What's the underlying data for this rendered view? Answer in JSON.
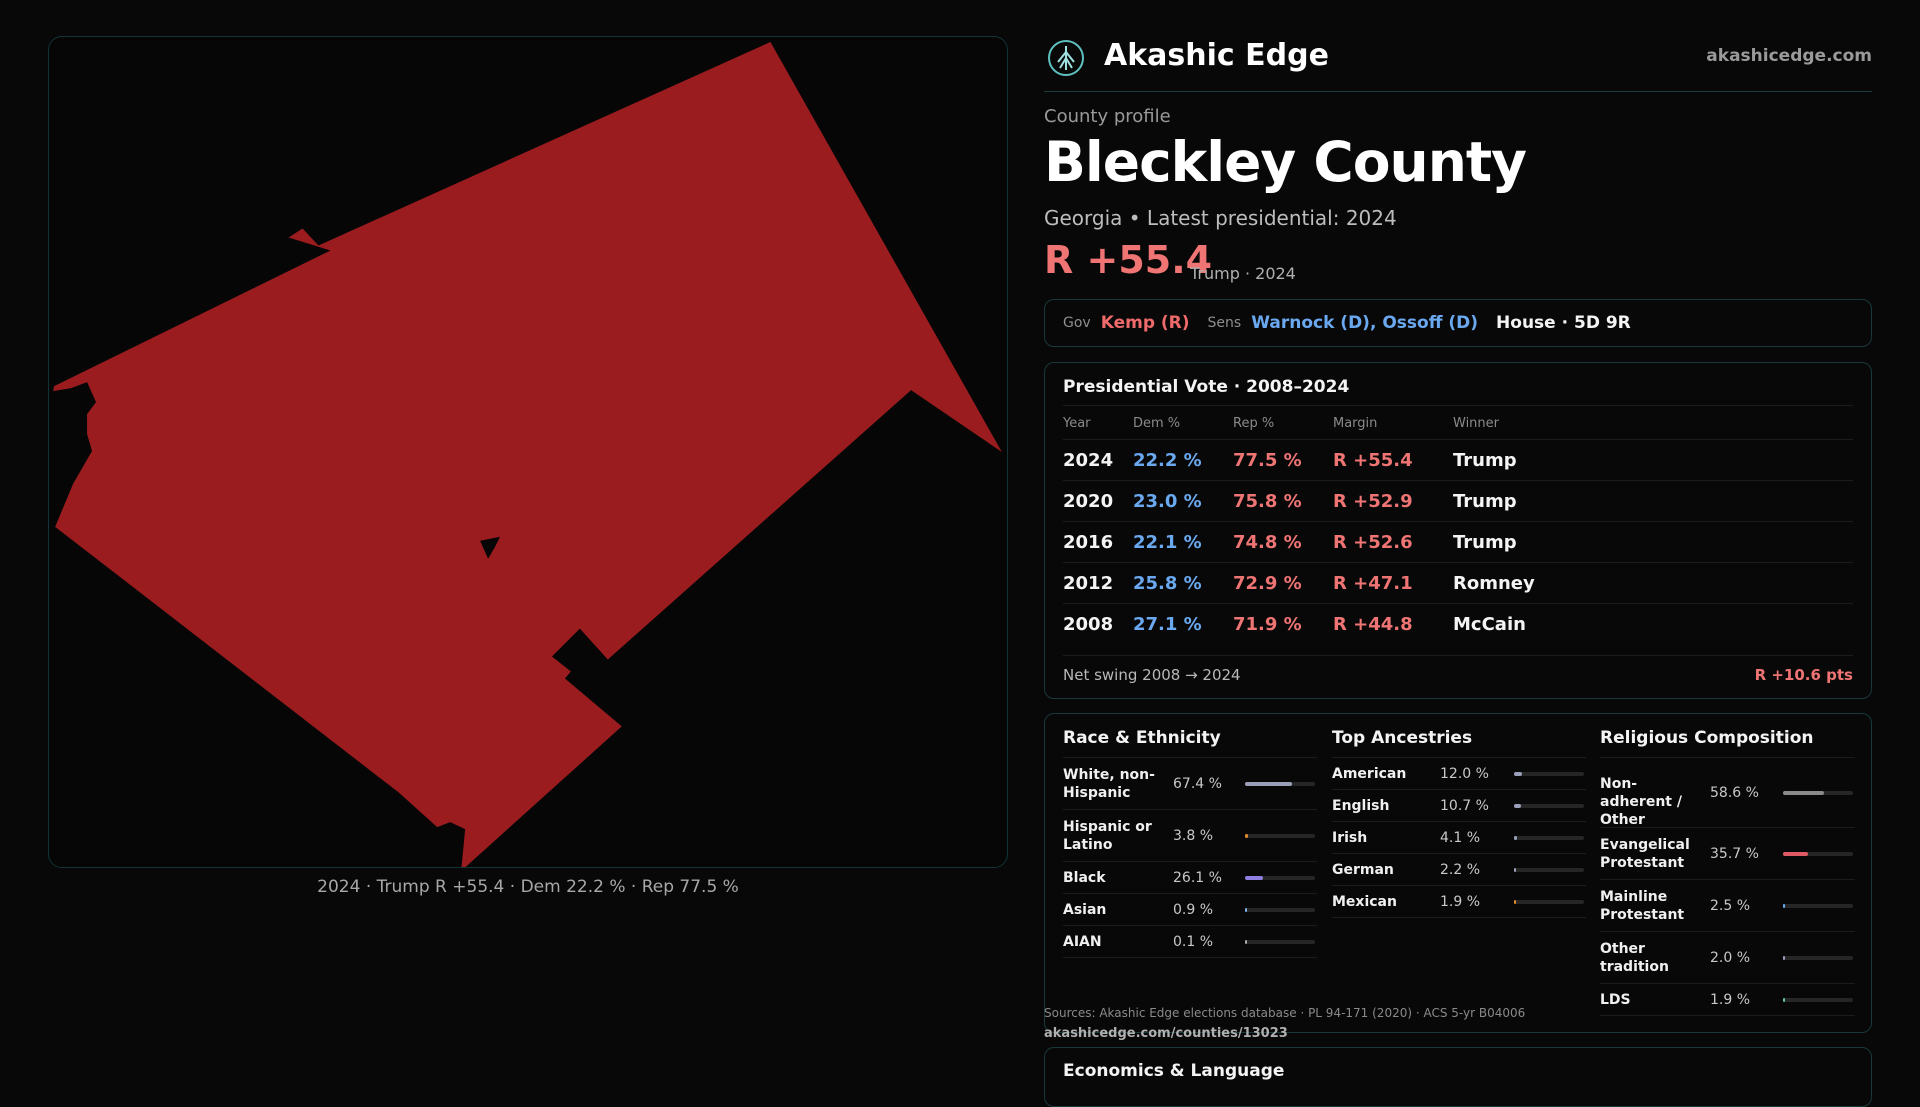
{
  "map": {
    "fill_color": "#9b1c1f",
    "caption": "2024 · Trump R +55.4 · Dem 22.2 % · Rep 77.5 %"
  },
  "header": {
    "brand": "Akashic Edge",
    "site": "akashicedge.com",
    "logo_icon": "tree-icon"
  },
  "profile": {
    "eyebrow": "County profile",
    "title": "Bleckley County",
    "subtitle": "Georgia • Latest presidential: 2024",
    "margin": "R +55.4",
    "margin_note": "Trump · 2024"
  },
  "officials": {
    "gov_label": "Gov",
    "gov_value": "Kemp (R)",
    "sens_label": "Sens",
    "sens_value": "Warnock (D), Ossoff (D)",
    "house_value": "House · 5D 9R"
  },
  "presidential": {
    "title": "Presidential Vote · 2008–2024",
    "columns": [
      "Year",
      "Dem %",
      "Rep %",
      "Margin",
      "Winner"
    ],
    "rows": [
      {
        "year": "2024",
        "dem": "22.2 %",
        "rep": "77.5 %",
        "margin": "R +55.4",
        "winner": "Trump"
      },
      {
        "year": "2020",
        "dem": "23.0 %",
        "rep": "75.8 %",
        "margin": "R +52.9",
        "winner": "Trump"
      },
      {
        "year": "2016",
        "dem": "22.1 %",
        "rep": "74.8 %",
        "margin": "R +52.6",
        "winner": "Trump"
      },
      {
        "year": "2012",
        "dem": "25.8 %",
        "rep": "72.9 %",
        "margin": "R +47.1",
        "winner": "Romney"
      },
      {
        "year": "2008",
        "dem": "27.1 %",
        "rep": "71.9 %",
        "margin": "R +44.8",
        "winner": "McCain"
      }
    ],
    "swing_label": "Net swing 2008 → 2024",
    "swing_value": "R +10.6 pts"
  },
  "race": {
    "title": "Race & Ethnicity",
    "items": [
      {
        "label": "White, non-Hispanic",
        "value": "67.4 %",
        "fraction": 0.674,
        "color": "#9aa0b8"
      },
      {
        "label": "Hispanic or Latino",
        "value": "3.8 %",
        "fraction": 0.038,
        "color": "#e08a2c"
      },
      {
        "label": "Black",
        "value": "26.1 %",
        "fraction": 0.261,
        "color": "#8f7fe0"
      },
      {
        "label": "Asian",
        "value": "0.9 %",
        "fraction": 0.009,
        "color": "#7fb0e0"
      },
      {
        "label": "AIAN",
        "value": "0.1 %",
        "fraction": 0.001,
        "color": "#aaaaaa"
      }
    ]
  },
  "ancestry": {
    "title": "Top Ancestries",
    "items": [
      {
        "label": "American",
        "value": "12.0 %",
        "fraction": 0.12,
        "color": "#9aa0b8"
      },
      {
        "label": "English",
        "value": "10.7 %",
        "fraction": 0.107,
        "color": "#9aa0b8"
      },
      {
        "label": "Irish",
        "value": "4.1 %",
        "fraction": 0.041,
        "color": "#9aa0b8"
      },
      {
        "label": "German",
        "value": "2.2 %",
        "fraction": 0.022,
        "color": "#9aa0b8"
      },
      {
        "label": "Mexican",
        "value": "1.9 %",
        "fraction": 0.019,
        "color": "#e08a2c"
      }
    ]
  },
  "religion": {
    "title": "Religious Composition",
    "items": [
      {
        "label": "Non-adherent / Other",
        "value": "58.6 %",
        "fraction": 0.586,
        "color": "#8a8a8a"
      },
      {
        "label": "Evangelical Protestant",
        "value": "35.7 %",
        "fraction": 0.357,
        "color": "#e05a66"
      },
      {
        "label": "Mainline Protestant",
        "value": "2.5 %",
        "fraction": 0.025,
        "color": "#6aa8ef"
      },
      {
        "label": "Other tradition",
        "value": "2.0 %",
        "fraction": 0.02,
        "color": "#9aa0b8"
      },
      {
        "label": "LDS",
        "value": "1.9 %",
        "fraction": 0.019,
        "color": "#5fc0b0"
      }
    ]
  },
  "sources": {
    "text": "Sources: Akashic Edge elections database · PL 94-171 (2020) · ACS 5-yr B04006",
    "url": "akashicedge.com/counties/13023"
  },
  "economics": {
    "title": "Economics & Language"
  }
}
